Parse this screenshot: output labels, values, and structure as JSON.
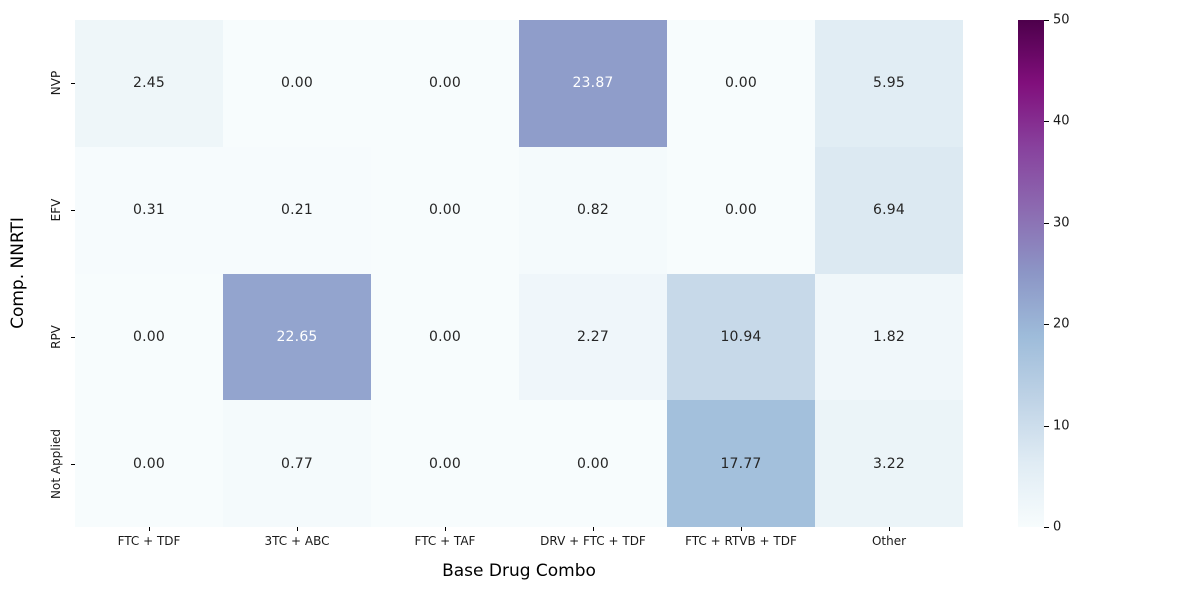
{
  "figure": {
    "background": "#ffffff"
  },
  "chart_data": {
    "type": "heatmap",
    "title": "",
    "xlabel": "Base Drug Combo",
    "ylabel": "Comp. NNRTI",
    "columns": [
      "FTC + TDF",
      "3TC + ABC",
      "FTC + TAF",
      "DRV + FTC + TDF",
      "FTC + RTVB + TDF",
      "Other"
    ],
    "rows": [
      "NVP",
      "EFV",
      "RPV",
      "Not Applied"
    ],
    "values": [
      [
        2.45,
        0.0,
        0.0,
        23.87,
        0.0,
        5.95
      ],
      [
        0.31,
        0.21,
        0.0,
        0.82,
        0.0,
        6.94
      ],
      [
        0.0,
        22.65,
        0.0,
        2.27,
        10.94,
        1.82
      ],
      [
        0.0,
        0.77,
        0.0,
        0.0,
        17.77,
        3.22
      ]
    ],
    "value_format_decimals": 2,
    "vmin": 0,
    "vmax": 50,
    "grid": false,
    "legend_position": "colorbar-right",
    "colormap": {
      "name": "BuPu",
      "stops": [
        {
          "pos": 0.0,
          "color": "#f7fcfd"
        },
        {
          "pos": 0.125,
          "color": "#e0ecf4"
        },
        {
          "pos": 0.25,
          "color": "#bfd3e6"
        },
        {
          "pos": 0.375,
          "color": "#9ebcda"
        },
        {
          "pos": 0.5,
          "color": "#8c96c6"
        },
        {
          "pos": 0.625,
          "color": "#8c6bb1"
        },
        {
          "pos": 0.75,
          "color": "#88419d"
        },
        {
          "pos": 0.875,
          "color": "#810f7c"
        },
        {
          "pos": 1.0,
          "color": "#4d004b"
        }
      ]
    },
    "colorbar_ticks": [
      0,
      10,
      20,
      30,
      40,
      50
    ],
    "annotation_colors": {
      "light_text": "#ffffff",
      "dark_text": "#262626"
    }
  }
}
